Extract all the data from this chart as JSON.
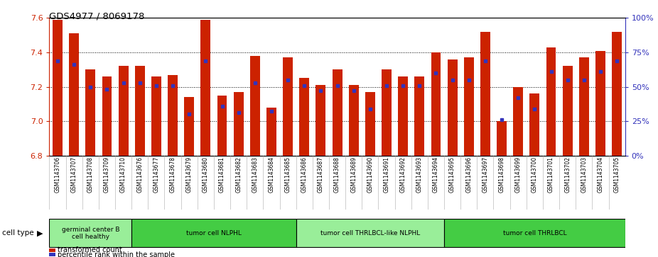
{
  "title": "GDS4977 / 8069178",
  "samples": [
    "GSM1143706",
    "GSM1143707",
    "GSM1143708",
    "GSM1143709",
    "GSM1143710",
    "GSM1143676",
    "GSM1143677",
    "GSM1143678",
    "GSM1143679",
    "GSM1143680",
    "GSM1143681",
    "GSM1143682",
    "GSM1143683",
    "GSM1143684",
    "GSM1143685",
    "GSM1143686",
    "GSM1143687",
    "GSM1143688",
    "GSM1143689",
    "GSM1143690",
    "GSM1143691",
    "GSM1143692",
    "GSM1143693",
    "GSM1143694",
    "GSM1143695",
    "GSM1143696",
    "GSM1143697",
    "GSM1143698",
    "GSM1143699",
    "GSM1143700",
    "GSM1143701",
    "GSM1143702",
    "GSM1143703",
    "GSM1143704",
    "GSM1143705"
  ],
  "bar_values": [
    7.59,
    7.51,
    7.3,
    7.26,
    7.32,
    7.32,
    7.26,
    7.27,
    7.14,
    7.59,
    7.15,
    7.17,
    7.38,
    7.08,
    7.37,
    7.25,
    7.21,
    7.3,
    7.21,
    7.17,
    7.3,
    7.26,
    7.26,
    7.4,
    7.36,
    7.37,
    7.52,
    7.0,
    7.2,
    7.16,
    7.43,
    7.32,
    7.37,
    7.41,
    7.52
  ],
  "percentile_pct": [
    69,
    66,
    50,
    48,
    53,
    53,
    51,
    51,
    30,
    69,
    36,
    31,
    53,
    32,
    55,
    51,
    47,
    51,
    47,
    34,
    51,
    51,
    51,
    60,
    55,
    55,
    69,
    26,
    42,
    34,
    61,
    55,
    55,
    61,
    69
  ],
  "y_min": 6.8,
  "y_max": 7.6,
  "y_ticks": [
    6.8,
    7.0,
    7.2,
    7.4,
    7.6
  ],
  "right_y_ticks": [
    0,
    25,
    50,
    75,
    100
  ],
  "bar_color": "#cc2200",
  "blue_color": "#3333bb",
  "cell_groups": [
    {
      "label": "germinal center B\ncell healthy",
      "start": 0,
      "end": 5,
      "color": "#99ee99"
    },
    {
      "label": "tumor cell NLPHL",
      "start": 5,
      "end": 15,
      "color": "#44cc44"
    },
    {
      "label": "tumor cell THRLBCL-like NLPHL",
      "start": 15,
      "end": 24,
      "color": "#99ee99"
    },
    {
      "label": "tumor cell THRLBCL",
      "start": 24,
      "end": 35,
      "color": "#44cc44"
    }
  ],
  "legend_items": [
    {
      "label": "transformed count",
      "color": "#cc2200"
    },
    {
      "label": "percentile rank within the sample",
      "color": "#3333bb"
    }
  ]
}
